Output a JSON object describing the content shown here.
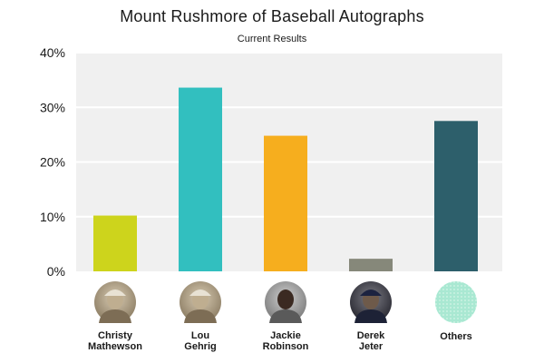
{
  "chart_data": {
    "type": "bar",
    "title": "Mount Rushmore of Baseball Autographs",
    "subtitle": "Current Results",
    "xlabel": "",
    "ylabel": "",
    "categories": [
      [
        "Christy",
        "Mathewson"
      ],
      [
        "Lou",
        "Gehrig"
      ],
      [
        "Jackie",
        "Robinson"
      ],
      [
        "Derek",
        "Jeter"
      ],
      [
        "Others"
      ]
    ],
    "values": [
      10.2,
      33.6,
      24.8,
      2.3,
      27.5
    ],
    "colors": [
      "#cdd41c",
      "#32bfbf",
      "#f6ae1e",
      "#86887a",
      "#2d5f6b"
    ],
    "yticks": [
      "0%",
      "10%",
      "20%",
      "30%",
      "40%"
    ],
    "ylim": [
      0,
      40
    ],
    "grid": true,
    "legend": "none",
    "category_images": [
      "portrait-christy-mathewson",
      "portrait-lou-gehrig",
      "portrait-jackie-robinson",
      "portrait-derek-jeter",
      "others-dotted-circle"
    ]
  }
}
